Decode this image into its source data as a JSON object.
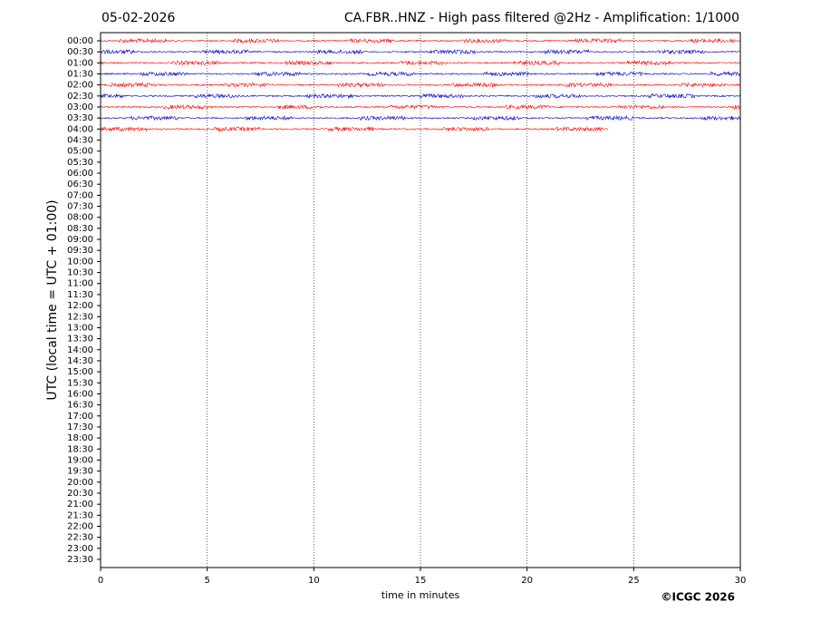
{
  "chart_data": {
    "type": "helicorder",
    "date": "05-02-2026",
    "title": "CA.FBR..HNZ - High pass filtered @2Hz - Amplification: 1/1000",
    "xlabel": "time in minutes",
    "ylabel": "UTC (local time = UTC + 01:00)",
    "credit": "©ICGC 2026",
    "categories": [
      "00:00",
      "00:30",
      "01:00",
      "01:30",
      "02:00",
      "02:30",
      "03:00",
      "03:30",
      "04:00",
      "04:30",
      "05:00",
      "05:30",
      "06:00",
      "06:30",
      "07:00",
      "07:30",
      "08:00",
      "08:30",
      "09:00",
      "09:30",
      "10:00",
      "10:30",
      "11:00",
      "11:30",
      "12:00",
      "12:30",
      "13:00",
      "13:30",
      "14:00",
      "14:30",
      "15:00",
      "15:30",
      "16:00",
      "16:30",
      "17:00",
      "17:30",
      "18:00",
      "18:30",
      "19:00",
      "19:30",
      "20:00",
      "20:30",
      "21:00",
      "21:30",
      "22:00",
      "22:30",
      "23:00",
      "23:30"
    ],
    "xlim": [
      0,
      30
    ],
    "xticks": [
      0,
      5,
      10,
      15,
      20,
      25,
      30
    ],
    "grid": true,
    "traces": [
      {
        "color": "#ff0000",
        "start": 0,
        "end": 30
      },
      {
        "color": "#0000cc",
        "start": 0,
        "end": 30
      },
      {
        "color": "#ff0000",
        "start": 0,
        "end": 30
      },
      {
        "color": "#0000cc",
        "start": 0,
        "end": 30
      },
      {
        "color": "#ff0000",
        "start": 0,
        "end": 30
      },
      {
        "color": "#0000cc",
        "start": 0,
        "end": 30
      },
      {
        "color": "#ff0000",
        "start": 0,
        "end": 30
      },
      {
        "color": "#0000cc",
        "start": 0,
        "end": 30
      },
      {
        "color": "#ff0000",
        "start": 0,
        "end": 23.8
      }
    ]
  }
}
